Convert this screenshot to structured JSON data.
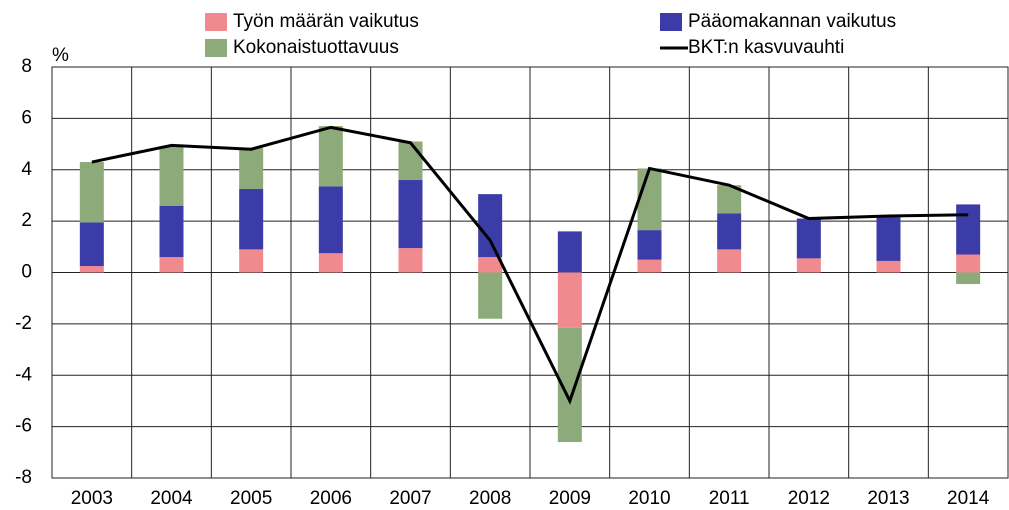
{
  "chart_data": {
    "type": "bar",
    "stacked": true,
    "y_unit": "%",
    "categories": [
      "2003",
      "2004",
      "2005",
      "2006",
      "2007",
      "2008",
      "2009",
      "2010",
      "2011",
      "2012",
      "2013",
      "2014"
    ],
    "series": [
      {
        "name": "Työn määrän vaikutus",
        "color": "#f08a8e",
        "values": [
          0.25,
          0.6,
          0.9,
          0.75,
          0.95,
          0.6,
          -2.15,
          0.5,
          0.9,
          0.55,
          0.45,
          0.7
        ]
      },
      {
        "name": "Pääomakannan vaikutus",
        "color": "#3c3ca8",
        "values": [
          1.7,
          2.0,
          2.35,
          2.6,
          2.65,
          2.45,
          1.6,
          1.15,
          1.4,
          1.55,
          1.7,
          1.95
        ]
      },
      {
        "name": "Kokonaistuottavuus",
        "color": "#8caa7a",
        "values": [
          2.35,
          2.3,
          1.6,
          2.35,
          1.5,
          -1.8,
          -4.45,
          2.4,
          1.1,
          0,
          0,
          -0.45
        ]
      },
      {
        "name": "BKT:n kasvuvauhti",
        "color": "#000000",
        "type": "line",
        "values": [
          4.3,
          4.95,
          4.8,
          5.65,
          5.05,
          1.25,
          -5.0,
          4.05,
          3.4,
          2.1,
          2.2,
          2.25
        ]
      }
    ],
    "ylim": [
      -8,
      8
    ],
    "yticks": [
      -8,
      -6,
      -4,
      -2,
      0,
      2,
      4,
      6,
      8
    ],
    "grid": true
  }
}
